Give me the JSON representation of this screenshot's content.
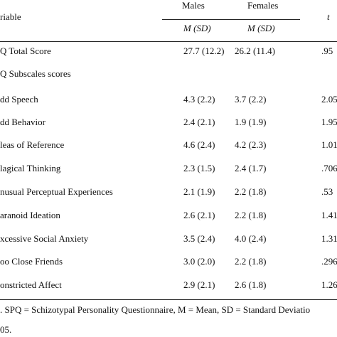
{
  "header": {
    "variable": "riable",
    "males": "Males",
    "females": "Females",
    "t": "t",
    "males_sub": "M (SD)",
    "females_sub": "M (SD)"
  },
  "rows": [
    {
      "label": "Q Total Score",
      "males": "27.7 (12.2)",
      "females": "26.2  (11.4)",
      "t": ".95"
    },
    {
      "label": "Q Subscales scores",
      "males": "",
      "females": "",
      "t": ""
    },
    {
      "label": "dd Speech",
      "males": "4.3  (2.2)",
      "females": "3.7  (2.2)",
      "t": "2.05"
    },
    {
      "label": "dd Behavior",
      "males": "2.4  (2.1)",
      "females": "1.9  (1.9)",
      "t": "1.95"
    },
    {
      "label": "leas of Reference",
      "males": "4.6  (2.4)",
      "females": "4.2  (2.3)",
      "t": "1.01"
    },
    {
      "label": "lagical Thinking",
      "males": "2.3  (1.5)",
      "females": "2.4  (1.7)",
      "t": ".706"
    },
    {
      "label": "nusual Perceptual Experiences",
      "males": "2.1  (1.9)",
      "females": "2.2  (1.8)",
      "t": ".53"
    },
    {
      "label": "aranoid Ideation",
      "males": "2.6  (2.1)",
      "females": "2.2  (1.8)",
      "t": "1.41"
    },
    {
      "label": "xcessive Social Anxiety",
      "males": "3.5  (2.4)",
      "females": "4.0  (2.4)",
      "t": "1.31"
    },
    {
      "label": "oo Close Friends",
      "males": "3.0  (2.0)",
      "females": "2.2  (1.8)",
      "t": ".296"
    },
    {
      "label": "onstricted Affect",
      "males": "2.9  (2.1)",
      "females": "2.6  (1.8)",
      "t": "1.26"
    }
  ],
  "note_line1": ". SPQ = Schizotypal Personality Questionnaire, M = Mean, SD = Standard Deviatio",
  "note_line2": "05."
}
